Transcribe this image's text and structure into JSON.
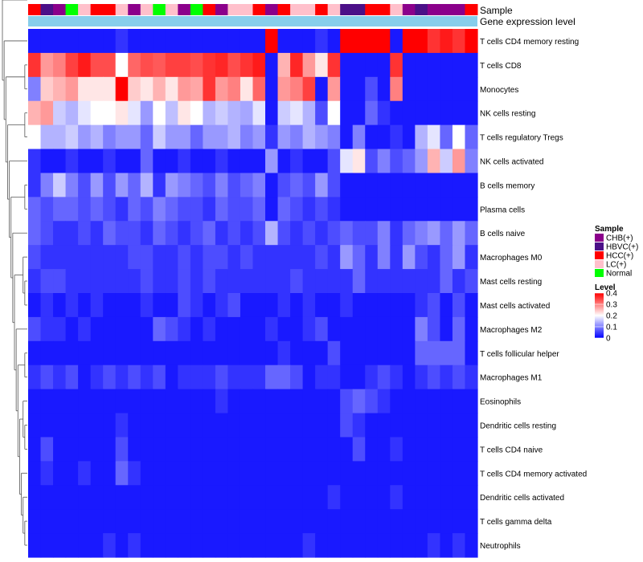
{
  "chart_data": {
    "type": "heatmap",
    "title": "",
    "annotation_tracks": [
      "Sample",
      "Gene expression level"
    ],
    "sample_groups": {
      "CHB(+)": "#8B008B",
      "HBVC(+)": "#4B1088",
      "HCC(+)": "#FF0000",
      "LC(+)": "#FFC0CB",
      "Normal": "#00FF00"
    },
    "gene_expression_color": "#87CEEB",
    "column_samples": [
      "HCC(+)",
      "HBVC(+)",
      "CHB(+)",
      "Normal",
      "LC(+)",
      "HCC(+)",
      "HCC(+)",
      "LC(+)",
      "CHB(+)",
      "LC(+)",
      "Normal",
      "LC(+)",
      "CHB(+)",
      "Normal",
      "HCC(+)",
      "CHB(+)",
      "LC(+)",
      "LC(+)",
      "HCC(+)",
      "CHB(+)",
      "HCC(+)",
      "LC(+)",
      "LC(+)",
      "HCC(+)",
      "LC(+)",
      "HBVC(+)",
      "HBVC(+)",
      "HCC(+)",
      "HCC(+)",
      "LC(+)",
      "CHB(+)",
      "HBVC(+)",
      "CHB(+)",
      "CHB(+)",
      "CHB(+)",
      "HCC(+)"
    ],
    "rows": [
      "T cells CD4 memory resting",
      "T cells CD8",
      "Monocytes",
      "NK cells resting",
      "T cells regulatory  Tregs",
      "NK cells activated",
      "B cells memory",
      "Plasma cells",
      "B cells naive",
      "Macrophages M0",
      "Mast cells resting",
      "Mast cells activated",
      "Macrophages M2",
      "T cells follicular helper",
      "Macrophages M1",
      "Eosinophils",
      "Dendritic cells resting",
      "T cells CD4 naive",
      "T cells CD4 memory activated",
      "Dendritic cells activated",
      "T cells gamma delta",
      "Neutrophils"
    ],
    "values": [
      [
        0.02,
        0.02,
        0.02,
        0.02,
        0.02,
        0.02,
        0.02,
        0.04,
        0.02,
        0.02,
        0.02,
        0.02,
        0.02,
        0.02,
        0.02,
        0.02,
        0.02,
        0.02,
        0.02,
        0.4,
        0.02,
        0.02,
        0.02,
        0.04,
        0.02,
        0.4,
        0.4,
        0.4,
        0.4,
        0.02,
        0.4,
        0.4,
        0.36,
        0.38,
        0.36,
        0.4
      ],
      [
        0.36,
        0.28,
        0.3,
        0.35,
        0.38,
        0.34,
        0.34,
        0.2,
        0.32,
        0.34,
        0.33,
        0.35,
        0.35,
        0.34,
        0.36,
        0.37,
        0.34,
        0.36,
        0.38,
        0.02,
        0.26,
        0.37,
        0.28,
        0.22,
        0.36,
        0.02,
        0.02,
        0.02,
        0.02,
        0.36,
        0.02,
        0.02,
        0.02,
        0.02,
        0.02,
        0.02
      ],
      [
        0.1,
        0.24,
        0.26,
        0.28,
        0.22,
        0.22,
        0.22,
        0.4,
        0.24,
        0.22,
        0.26,
        0.22,
        0.28,
        0.27,
        0.36,
        0.28,
        0.3,
        0.22,
        0.32,
        0.02,
        0.28,
        0.3,
        0.35,
        0.02,
        0.28,
        0.02,
        0.02,
        0.06,
        0.02,
        0.3,
        0.02,
        0.02,
        0.02,
        0.02,
        0.02,
        0.02
      ],
      [
        0.26,
        0.28,
        0.16,
        0.14,
        0.18,
        0.2,
        0.2,
        0.22,
        0.18,
        0.12,
        0.2,
        0.15,
        0.22,
        0.2,
        0.14,
        0.16,
        0.14,
        0.13,
        0.18,
        0.02,
        0.16,
        0.18,
        0.14,
        0.06,
        0.2,
        0.02,
        0.02,
        0.08,
        0.04,
        0.02,
        0.02,
        0.02,
        0.02,
        0.02,
        0.02,
        0.02
      ],
      [
        0.2,
        0.14,
        0.14,
        0.16,
        0.12,
        0.14,
        0.1,
        0.12,
        0.12,
        0.08,
        0.16,
        0.12,
        0.12,
        0.08,
        0.12,
        0.12,
        0.14,
        0.1,
        0.12,
        0.04,
        0.12,
        0.1,
        0.14,
        0.12,
        0.1,
        0.02,
        0.1,
        0.02,
        0.02,
        0.04,
        0.02,
        0.14,
        0.18,
        0.08,
        0.2,
        0.08
      ],
      [
        0.04,
        0.02,
        0.02,
        0.04,
        0.02,
        0.02,
        0.04,
        0.02,
        0.02,
        0.08,
        0.02,
        0.02,
        0.04,
        0.02,
        0.02,
        0.04,
        0.02,
        0.02,
        0.02,
        0.12,
        0.02,
        0.04,
        0.02,
        0.02,
        0.06,
        0.18,
        0.22,
        0.06,
        0.1,
        0.06,
        0.08,
        0.12,
        0.26,
        0.16,
        0.28,
        0.1
      ],
      [
        0.04,
        0.1,
        0.16,
        0.1,
        0.06,
        0.12,
        0.06,
        0.12,
        0.08,
        0.14,
        0.04,
        0.12,
        0.1,
        0.08,
        0.06,
        0.1,
        0.06,
        0.08,
        0.1,
        0.02,
        0.06,
        0.08,
        0.06,
        0.12,
        0.06,
        0.02,
        0.02,
        0.02,
        0.02,
        0.02,
        0.02,
        0.02,
        0.02,
        0.02,
        0.02,
        0.02
      ],
      [
        0.08,
        0.06,
        0.08,
        0.08,
        0.06,
        0.08,
        0.06,
        0.04,
        0.08,
        0.06,
        0.1,
        0.08,
        0.06,
        0.06,
        0.04,
        0.08,
        0.06,
        0.06,
        0.08,
        0.02,
        0.08,
        0.06,
        0.04,
        0.06,
        0.04,
        0.02,
        0.02,
        0.02,
        0.02,
        0.02,
        0.02,
        0.02,
        0.02,
        0.02,
        0.02,
        0.02
      ],
      [
        0.08,
        0.06,
        0.04,
        0.04,
        0.06,
        0.04,
        0.08,
        0.06,
        0.06,
        0.04,
        0.08,
        0.06,
        0.04,
        0.06,
        0.08,
        0.04,
        0.06,
        0.04,
        0.06,
        0.14,
        0.06,
        0.04,
        0.06,
        0.04,
        0.06,
        0.08,
        0.06,
        0.06,
        0.1,
        0.04,
        0.08,
        0.1,
        0.12,
        0.08,
        0.12,
        0.08
      ],
      [
        0.06,
        0.04,
        0.04,
        0.04,
        0.04,
        0.04,
        0.04,
        0.04,
        0.06,
        0.06,
        0.04,
        0.04,
        0.06,
        0.04,
        0.06,
        0.06,
        0.04,
        0.06,
        0.04,
        0.04,
        0.04,
        0.04,
        0.04,
        0.06,
        0.04,
        0.12,
        0.08,
        0.04,
        0.1,
        0.04,
        0.12,
        0.06,
        0.04,
        0.08,
        0.12,
        0.04
      ],
      [
        0.04,
        0.06,
        0.06,
        0.04,
        0.04,
        0.04,
        0.04,
        0.04,
        0.04,
        0.06,
        0.04,
        0.04,
        0.06,
        0.04,
        0.06,
        0.04,
        0.04,
        0.04,
        0.04,
        0.04,
        0.04,
        0.06,
        0.04,
        0.04,
        0.04,
        0.04,
        0.08,
        0.04,
        0.04,
        0.04,
        0.04,
        0.04,
        0.04,
        0.08,
        0.04,
        0.06
      ],
      [
        0.02,
        0.04,
        0.02,
        0.04,
        0.02,
        0.04,
        0.02,
        0.02,
        0.02,
        0.04,
        0.02,
        0.02,
        0.06,
        0.04,
        0.02,
        0.04,
        0.06,
        0.02,
        0.02,
        0.02,
        0.04,
        0.02,
        0.04,
        0.02,
        0.02,
        0.04,
        0.02,
        0.02,
        0.02,
        0.02,
        0.02,
        0.04,
        0.06,
        0.02,
        0.06,
        0.02
      ],
      [
        0.06,
        0.04,
        0.04,
        0.02,
        0.04,
        0.02,
        0.02,
        0.02,
        0.02,
        0.02,
        0.08,
        0.06,
        0.04,
        0.02,
        0.04,
        0.02,
        0.02,
        0.02,
        0.02,
        0.04,
        0.02,
        0.02,
        0.04,
        0.06,
        0.02,
        0.02,
        0.02,
        0.02,
        0.02,
        0.02,
        0.02,
        0.1,
        0.06,
        0.02,
        0.08,
        0.02
      ],
      [
        0.02,
        0.02,
        0.02,
        0.02,
        0.02,
        0.02,
        0.02,
        0.02,
        0.02,
        0.02,
        0.02,
        0.02,
        0.02,
        0.02,
        0.02,
        0.02,
        0.02,
        0.02,
        0.02,
        0.02,
        0.04,
        0.02,
        0.02,
        0.02,
        0.06,
        0.02,
        0.02,
        0.02,
        0.02,
        0.02,
        0.02,
        0.08,
        0.08,
        0.08,
        0.08,
        0.02
      ],
      [
        0.04,
        0.06,
        0.04,
        0.06,
        0.02,
        0.04,
        0.06,
        0.04,
        0.06,
        0.04,
        0.06,
        0.02,
        0.04,
        0.04,
        0.04,
        0.06,
        0.04,
        0.04,
        0.04,
        0.08,
        0.08,
        0.06,
        0.02,
        0.04,
        0.04,
        0.02,
        0.02,
        0.04,
        0.06,
        0.04,
        0.02,
        0.04,
        0.06,
        0.04,
        0.06,
        0.04
      ],
      [
        0.02,
        0.02,
        0.02,
        0.02,
        0.02,
        0.02,
        0.02,
        0.02,
        0.02,
        0.02,
        0.02,
        0.02,
        0.02,
        0.02,
        0.02,
        0.04,
        0.02,
        0.02,
        0.02,
        0.02,
        0.02,
        0.02,
        0.02,
        0.02,
        0.02,
        0.06,
        0.08,
        0.06,
        0.04,
        0.02,
        0.02,
        0.02,
        0.02,
        0.02,
        0.02,
        0.02
      ],
      [
        0.02,
        0.02,
        0.02,
        0.02,
        0.02,
        0.02,
        0.02,
        0.04,
        0.02,
        0.02,
        0.02,
        0.02,
        0.02,
        0.02,
        0.02,
        0.02,
        0.02,
        0.02,
        0.02,
        0.02,
        0.02,
        0.02,
        0.02,
        0.02,
        0.02,
        0.06,
        0.04,
        0.02,
        0.02,
        0.02,
        0.02,
        0.02,
        0.02,
        0.02,
        0.02,
        0.02
      ],
      [
        0.02,
        0.06,
        0.02,
        0.02,
        0.02,
        0.02,
        0.02,
        0.06,
        0.02,
        0.02,
        0.02,
        0.02,
        0.02,
        0.02,
        0.02,
        0.02,
        0.02,
        0.02,
        0.02,
        0.02,
        0.02,
        0.02,
        0.02,
        0.02,
        0.02,
        0.02,
        0.06,
        0.02,
        0.02,
        0.04,
        0.02,
        0.02,
        0.02,
        0.02,
        0.02,
        0.02
      ],
      [
        0.02,
        0.04,
        0.02,
        0.02,
        0.04,
        0.02,
        0.02,
        0.08,
        0.04,
        0.02,
        0.02,
        0.02,
        0.02,
        0.02,
        0.02,
        0.02,
        0.02,
        0.02,
        0.02,
        0.02,
        0.02,
        0.02,
        0.02,
        0.02,
        0.02,
        0.02,
        0.02,
        0.02,
        0.02,
        0.02,
        0.02,
        0.02,
        0.02,
        0.02,
        0.02,
        0.02
      ],
      [
        0.02,
        0.02,
        0.02,
        0.02,
        0.02,
        0.02,
        0.02,
        0.02,
        0.02,
        0.02,
        0.02,
        0.02,
        0.02,
        0.02,
        0.02,
        0.02,
        0.02,
        0.02,
        0.02,
        0.02,
        0.02,
        0.02,
        0.02,
        0.02,
        0.04,
        0.02,
        0.02,
        0.02,
        0.02,
        0.04,
        0.02,
        0.02,
        0.02,
        0.02,
        0.02,
        0.02
      ],
      [
        0.02,
        0.02,
        0.02,
        0.02,
        0.02,
        0.02,
        0.02,
        0.02,
        0.02,
        0.02,
        0.02,
        0.02,
        0.02,
        0.02,
        0.02,
        0.02,
        0.02,
        0.02,
        0.02,
        0.02,
        0.02,
        0.02,
        0.02,
        0.02,
        0.02,
        0.02,
        0.02,
        0.02,
        0.02,
        0.02,
        0.02,
        0.02,
        0.02,
        0.02,
        0.02,
        0.02
      ],
      [
        0.02,
        0.02,
        0.02,
        0.02,
        0.02,
        0.02,
        0.04,
        0.02,
        0.04,
        0.02,
        0.02,
        0.02,
        0.02,
        0.02,
        0.02,
        0.02,
        0.02,
        0.02,
        0.02,
        0.02,
        0.02,
        0.02,
        0.04,
        0.02,
        0.02,
        0.02,
        0.02,
        0.02,
        0.02,
        0.02,
        0.02,
        0.02,
        0.04,
        0.02,
        0.04,
        0.02
      ]
    ],
    "legend": {
      "sample_title": "Sample",
      "sample_entries": [
        "CHB(+)",
        "HBVC(+)",
        "HCC(+)",
        "LC(+)",
        "Normal"
      ],
      "level_title": "Level",
      "level_ticks": [
        0.4,
        0.3,
        0.2,
        0.1,
        0
      ],
      "level_range": [
        0,
        0.4
      ],
      "colors": {
        "low": "#0000FF",
        "mid": "#FFFFFF",
        "high": "#FF0000"
      }
    },
    "dendrogram": "rows"
  }
}
